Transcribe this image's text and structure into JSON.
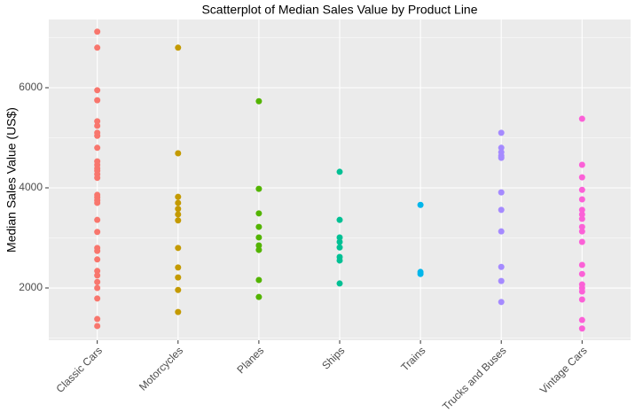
{
  "chart_data": {
    "type": "strip",
    "title": "Scatterplot of Median Sales Value by Product Line",
    "y_label": "Median Sales Value (US$)",
    "ylim": [
      956,
      7363
    ],
    "yticks": [
      2000,
      4000,
      6000
    ],
    "grid": true,
    "groups": [
      {
        "category": "Classic Cars",
        "color": "#F8766D",
        "values": [
          7120,
          6800,
          5950,
          5750,
          5330,
          5240,
          5100,
          5040,
          4800,
          4530,
          4460,
          4390,
          4340,
          4270,
          4200,
          3860,
          3810,
          3750,
          3700,
          3360,
          3120,
          2800,
          2740,
          2570,
          2340,
          2250,
          2120,
          2000,
          1790,
          1380,
          1240
        ]
      },
      {
        "category": "Motorcycles",
        "color": "#C49A00",
        "values": [
          6800,
          4690,
          3820,
          3700,
          3580,
          3470,
          3350,
          2800,
          2410,
          2210,
          1960,
          1520
        ]
      },
      {
        "category": "Planes",
        "color": "#53B400",
        "values": [
          5730,
          3980,
          3490,
          3220,
          3010,
          2850,
          2760,
          2160,
          1820
        ]
      },
      {
        "category": "Ships",
        "color": "#00C094",
        "values": [
          4320,
          3360,
          3010,
          2920,
          2810,
          2620,
          2550,
          2090
        ]
      },
      {
        "category": "Trains",
        "color": "#00B6EB",
        "values": [
          3660,
          2320,
          2280
        ]
      },
      {
        "category": "Trucks and Buses",
        "color": "#A58AFF",
        "values": [
          5100,
          4800,
          4710,
          4640,
          4600,
          3910,
          3560,
          3130,
          2420,
          2140,
          1720
        ]
      },
      {
        "category": "Vintage Cars",
        "color": "#FB61D7",
        "values": [
          5380,
          4460,
          4210,
          3960,
          3770,
          3560,
          3470,
          3380,
          3220,
          3130,
          2920,
          2460,
          2280,
          2070,
          2000,
          1930,
          1770,
          1360,
          1190
        ]
      }
    ]
  }
}
